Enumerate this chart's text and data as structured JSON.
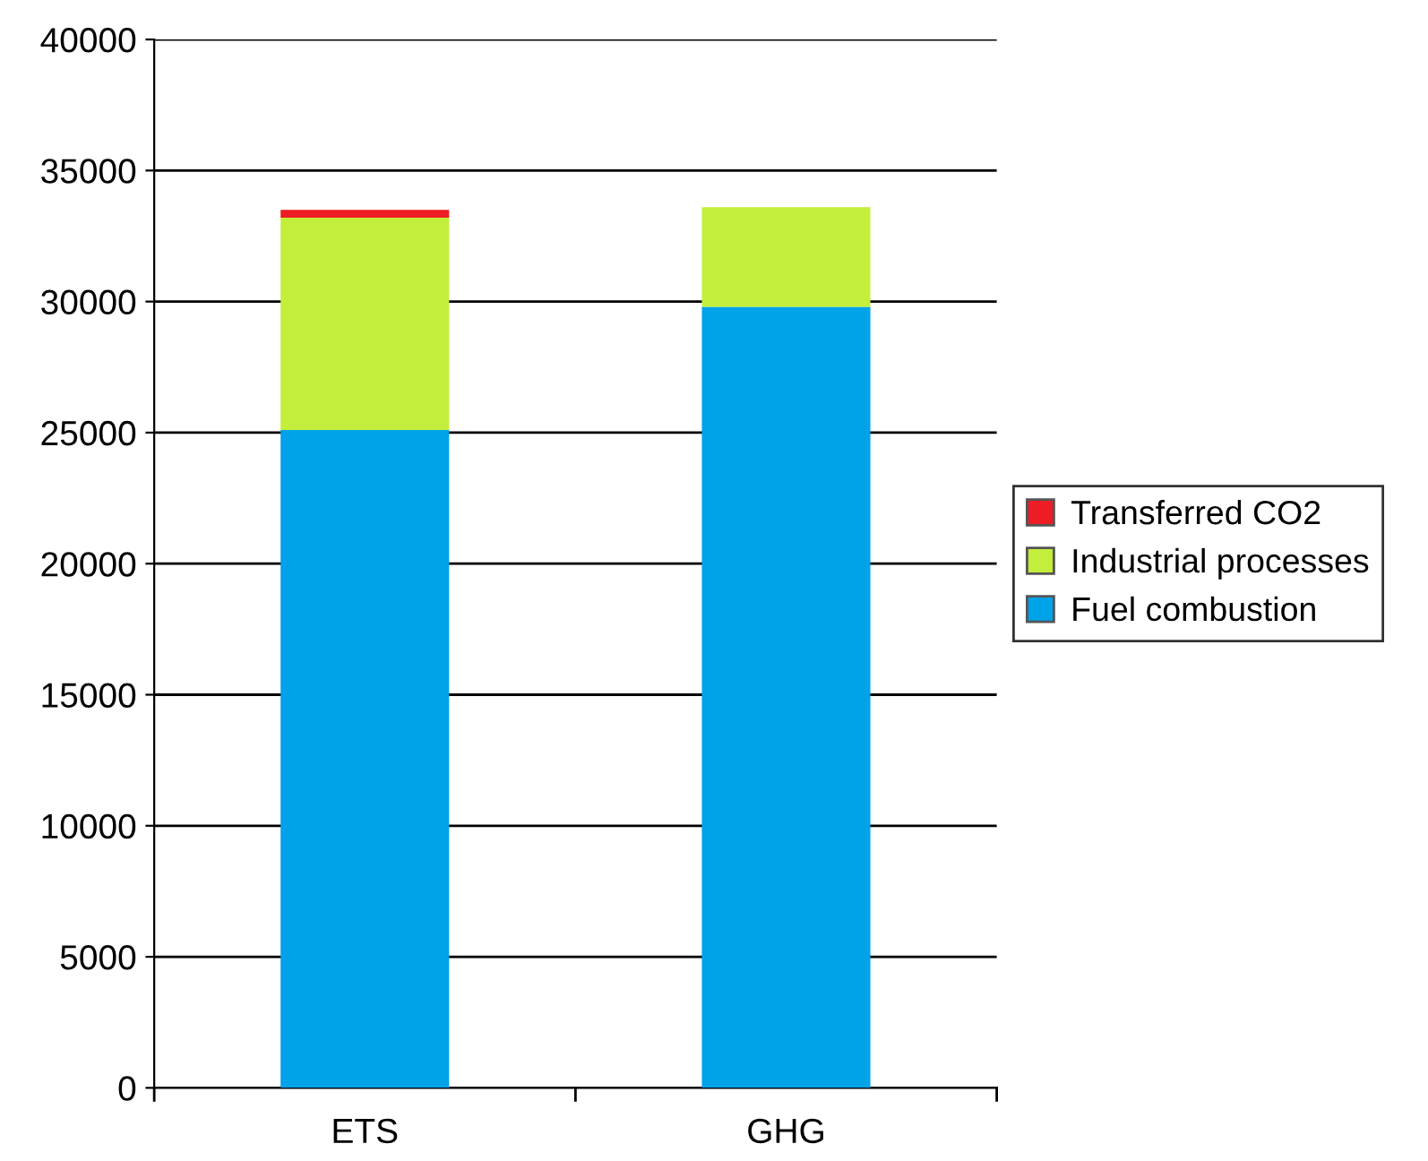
{
  "chart_data": {
    "type": "bar",
    "stacked": true,
    "categories": [
      "ETS",
      "GHG"
    ],
    "series": [
      {
        "name": "Fuel combustion",
        "color": "#00a2e8",
        "values": [
          25100,
          29800
        ]
      },
      {
        "name": "Industrial processes",
        "color": "#c3ee3b",
        "values": [
          8100,
          3800
        ]
      },
      {
        "name": "Transferred CO2",
        "color": "#ee1c24",
        "values": [
          300,
          null
        ]
      }
    ],
    "ylim": [
      0,
      40000
    ],
    "yticks": [
      0,
      5000,
      10000,
      15000,
      20000,
      25000,
      30000,
      35000,
      40000
    ],
    "grid": "y",
    "legend": "right"
  }
}
